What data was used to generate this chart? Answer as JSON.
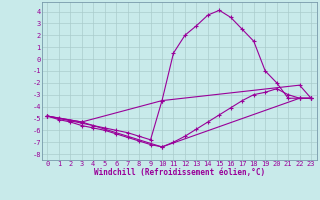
{
  "xlabel": "Windchill (Refroidissement éolien,°C)",
  "bg_color": "#c8eaea",
  "line_color": "#990099",
  "grid_color": "#aacccc",
  "spine_color": "#7799aa",
  "xlim": [
    -0.5,
    23.5
  ],
  "ylim": [
    -8.5,
    4.8
  ],
  "yticks": [
    4,
    3,
    2,
    1,
    0,
    -1,
    -2,
    -3,
    -4,
    -5,
    -6,
    -7,
    -8
  ],
  "xticks": [
    0,
    1,
    2,
    3,
    4,
    5,
    6,
    7,
    8,
    9,
    10,
    11,
    12,
    13,
    14,
    15,
    16,
    17,
    18,
    19,
    20,
    21,
    22,
    23
  ],
  "line1_x": [
    0,
    1,
    2,
    3,
    4,
    5,
    6,
    7,
    8,
    9,
    10,
    11,
    12,
    13,
    14,
    15,
    16,
    17,
    18,
    19,
    20,
    21,
    22,
    23
  ],
  "line1_y": [
    -4.8,
    -5.1,
    -5.3,
    -5.6,
    -5.8,
    -6.0,
    -6.3,
    -6.6,
    -6.9,
    -7.2,
    -7.4,
    -7.0,
    -6.5,
    -5.9,
    -5.3,
    -4.7,
    -4.1,
    -3.5,
    -3.0,
    -2.8,
    -2.5,
    -3.0,
    -3.3,
    -3.3
  ],
  "line2_x": [
    0,
    1,
    2,
    3,
    4,
    5,
    6,
    7,
    8,
    9,
    10,
    11,
    12,
    13,
    14,
    15,
    16,
    17,
    18,
    19,
    20,
    21,
    22,
    23
  ],
  "line2_y": [
    -4.8,
    -5.0,
    -5.2,
    -5.4,
    -5.6,
    -5.8,
    -6.0,
    -6.2,
    -6.5,
    -6.8,
    -3.5,
    0.5,
    2.0,
    2.8,
    3.7,
    4.1,
    3.5,
    2.5,
    1.5,
    -1.0,
    -2.0,
    -3.3,
    -3.3,
    -3.3
  ],
  "line3_x": [
    0,
    3,
    10,
    22,
    23
  ],
  "line3_y": [
    -4.8,
    -5.3,
    -7.4,
    -3.3,
    -3.3
  ],
  "line4_x": [
    0,
    3,
    10,
    22,
    23
  ],
  "line4_y": [
    -4.8,
    -5.3,
    -3.5,
    -2.2,
    -3.3
  ]
}
